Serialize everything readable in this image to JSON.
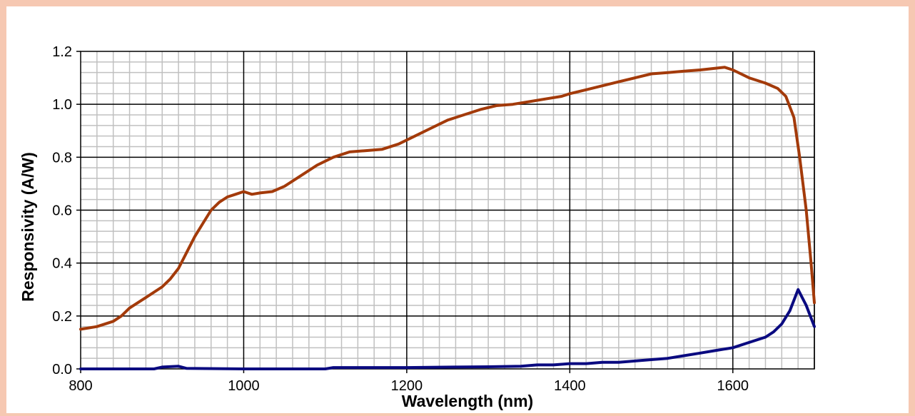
{
  "chart_data": {
    "type": "line",
    "title": "",
    "xlabel": "Wavelength (nm)",
    "ylabel": "Responsivity (A/W)",
    "xlim": [
      800,
      1700
    ],
    "ylim": [
      0.0,
      1.2
    ],
    "x_ticks": [
      "800",
      "1000",
      "1200",
      "1400",
      "1600"
    ],
    "y_ticks": [
      "0.0",
      "0.2",
      "0.4",
      "0.6",
      "0.8",
      "1.0",
      "1.2"
    ],
    "grid": true,
    "legend": "none",
    "series": [
      {
        "color": "#a33a0a",
        "points": [
          [
            800,
            0.15
          ],
          [
            820,
            0.16
          ],
          [
            840,
            0.18
          ],
          [
            850,
            0.2
          ],
          [
            860,
            0.23
          ],
          [
            880,
            0.27
          ],
          [
            900,
            0.31
          ],
          [
            910,
            0.34
          ],
          [
            920,
            0.38
          ],
          [
            930,
            0.44
          ],
          [
            940,
            0.5
          ],
          [
            950,
            0.55
          ],
          [
            960,
            0.6
          ],
          [
            970,
            0.63
          ],
          [
            980,
            0.65
          ],
          [
            990,
            0.66
          ],
          [
            1000,
            0.67
          ],
          [
            1010,
            0.66
          ],
          [
            1020,
            0.665
          ],
          [
            1035,
            0.67
          ],
          [
            1050,
            0.69
          ],
          [
            1070,
            0.73
          ],
          [
            1090,
            0.77
          ],
          [
            1110,
            0.8
          ],
          [
            1130,
            0.82
          ],
          [
            1150,
            0.825
          ],
          [
            1170,
            0.83
          ],
          [
            1190,
            0.85
          ],
          [
            1210,
            0.88
          ],
          [
            1230,
            0.91
          ],
          [
            1250,
            0.94
          ],
          [
            1270,
            0.96
          ],
          [
            1290,
            0.98
          ],
          [
            1310,
            0.995
          ],
          [
            1330,
            1.0
          ],
          [
            1350,
            1.01
          ],
          [
            1370,
            1.02
          ],
          [
            1390,
            1.03
          ],
          [
            1400,
            1.04
          ],
          [
            1420,
            1.055
          ],
          [
            1440,
            1.07
          ],
          [
            1460,
            1.085
          ],
          [
            1480,
            1.1
          ],
          [
            1500,
            1.115
          ],
          [
            1520,
            1.12
          ],
          [
            1540,
            1.125
          ],
          [
            1560,
            1.13
          ],
          [
            1575,
            1.135
          ],
          [
            1590,
            1.14
          ],
          [
            1600,
            1.13
          ],
          [
            1620,
            1.1
          ],
          [
            1640,
            1.08
          ],
          [
            1655,
            1.06
          ],
          [
            1665,
            1.03
          ],
          [
            1675,
            0.95
          ],
          [
            1682,
            0.8
          ],
          [
            1690,
            0.6
          ],
          [
            1696,
            0.4
          ],
          [
            1700,
            0.25
          ]
        ]
      },
      {
        "color": "#0a0a80",
        "points": [
          [
            800,
            0.0
          ],
          [
            890,
            0.0
          ],
          [
            900,
            0.007
          ],
          [
            920,
            0.01
          ],
          [
            930,
            0.002
          ],
          [
            1000,
            0.0
          ],
          [
            1100,
            0.0
          ],
          [
            1110,
            0.005
          ],
          [
            1200,
            0.005
          ],
          [
            1260,
            0.007
          ],
          [
            1300,
            0.008
          ],
          [
            1340,
            0.01
          ],
          [
            1360,
            0.015
          ],
          [
            1380,
            0.015
          ],
          [
            1400,
            0.02
          ],
          [
            1420,
            0.02
          ],
          [
            1440,
            0.025
          ],
          [
            1460,
            0.025
          ],
          [
            1480,
            0.03
          ],
          [
            1500,
            0.035
          ],
          [
            1520,
            0.04
          ],
          [
            1540,
            0.05
          ],
          [
            1560,
            0.06
          ],
          [
            1580,
            0.07
          ],
          [
            1600,
            0.08
          ],
          [
            1620,
            0.1
          ],
          [
            1640,
            0.12
          ],
          [
            1650,
            0.14
          ],
          [
            1660,
            0.17
          ],
          [
            1670,
            0.22
          ],
          [
            1680,
            0.3
          ],
          [
            1690,
            0.24
          ],
          [
            1700,
            0.16
          ]
        ]
      }
    ]
  }
}
